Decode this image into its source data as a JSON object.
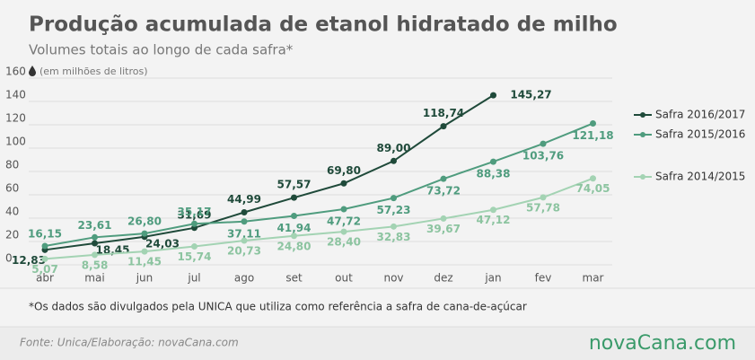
{
  "chart_data": {
    "type": "line",
    "title": "Produção acumulada de etanol hidratado de milho",
    "subtitle": "Volumes totais ao longo de cada safra*",
    "unit_note": "(em milhões de litros)",
    "footnote": "*Os dados são divulgados pela UNICA que utiliza como referência a safra de cana-de-açúcar",
    "source": "Fonte:  Unica/Elaboração: novaCana.com",
    "logo": "novaCana.com",
    "categories": [
      "abr",
      "mai",
      "jun",
      "jul",
      "ago",
      "set",
      "out",
      "nov",
      "dez",
      "jan",
      "fev",
      "mar"
    ],
    "ylim": [
      0,
      160
    ],
    "yticks": [
      0,
      20,
      40,
      60,
      80,
      100,
      120,
      140,
      160
    ],
    "grid": true,
    "legend": "right",
    "series": [
      {
        "name": "Safra 2016/2017",
        "color": "#1f4a3a",
        "values": [
          12.83,
          18.45,
          24.03,
          31.69,
          44.99,
          57.57,
          69.8,
          89.0,
          118.74,
          145.27,
          null,
          null
        ],
        "value_labels": [
          "12,83",
          "18,45",
          "24,03",
          "31,69",
          "44,99",
          "57,57",
          "69,80",
          "89,00",
          "118,74",
          "145,27",
          null,
          null
        ]
      },
      {
        "name": "Safra 2015/2016",
        "color": "#4f9c7e",
        "values": [
          16.15,
          23.61,
          26.8,
          35.17,
          37.11,
          41.94,
          47.72,
          57.23,
          73.72,
          88.38,
          103.76,
          121.18
        ],
        "value_labels": [
          "16,15",
          "23,61",
          "26,80",
          "35,17",
          "37,11",
          "41,94",
          "47,72",
          "57,23",
          "73,72",
          "88,38",
          "103,76",
          "121,18"
        ]
      },
      {
        "name": "Safra 2014/2015",
        "color": "#a3d3b3",
        "values": [
          5.07,
          8.58,
          11.45,
          15.74,
          20.73,
          24.8,
          28.4,
          32.83,
          39.67,
          47.12,
          57.78,
          74.05
        ],
        "value_labels": [
          "5,07",
          "8,58",
          "11,45",
          "15,74",
          "20,73",
          "24,80",
          "28,40",
          "32,83",
          "39,67",
          "47,12",
          "57,78",
          "74,05"
        ]
      }
    ]
  }
}
